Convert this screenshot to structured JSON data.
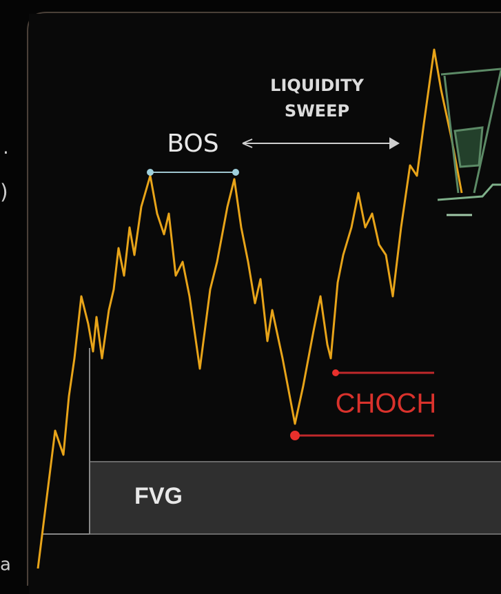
{
  "labels": {
    "bos": "BOS",
    "liquidity_sweep": [
      "LIQUIDITY",
      "SWEEP"
    ],
    "choch": "CHOCH",
    "fvg": "FVG"
  },
  "edge_text": [
    ".",
    ")",
    "a"
  ]
}
